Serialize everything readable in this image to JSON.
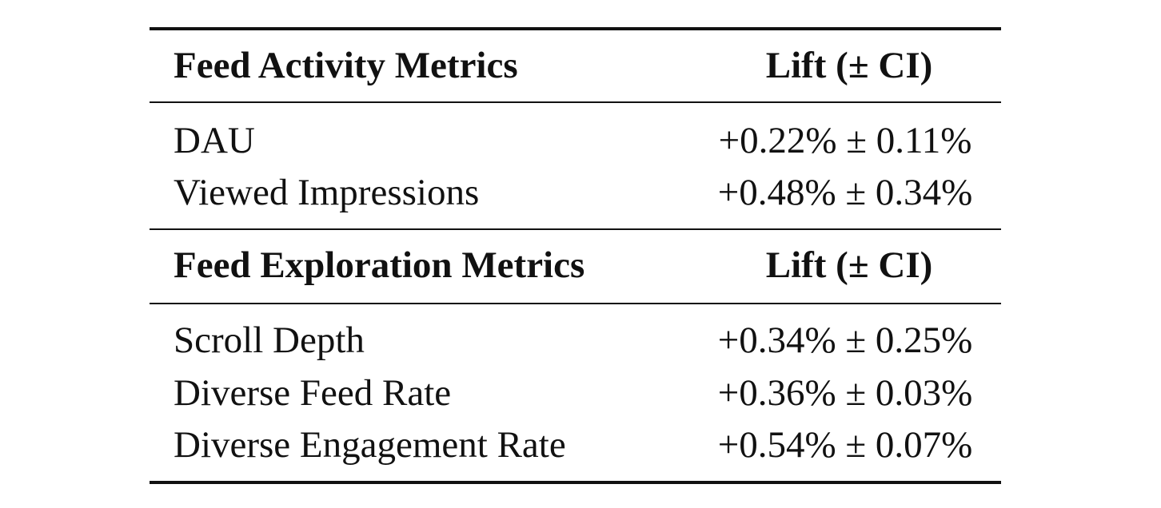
{
  "sections": [
    {
      "header": {
        "metric": "Feed Activity Metrics",
        "lift": "Lift (± CI)"
      },
      "rows": [
        {
          "metric": "DAU",
          "lift": "+0.22% ± 0.11%"
        },
        {
          "metric": "Viewed Impressions",
          "lift": "+0.48% ± 0.34%"
        }
      ]
    },
    {
      "header": {
        "metric": "Feed Exploration Metrics",
        "lift": "Lift (± CI)"
      },
      "rows": [
        {
          "metric": "Scroll Depth",
          "lift": "+0.34% ± 0.25%"
        },
        {
          "metric": "Diverse Feed Rate",
          "lift": "+0.36% ± 0.03%"
        },
        {
          "metric": "Diverse Engagement Rate",
          "lift": "+0.54% ± 0.07%"
        }
      ]
    }
  ]
}
